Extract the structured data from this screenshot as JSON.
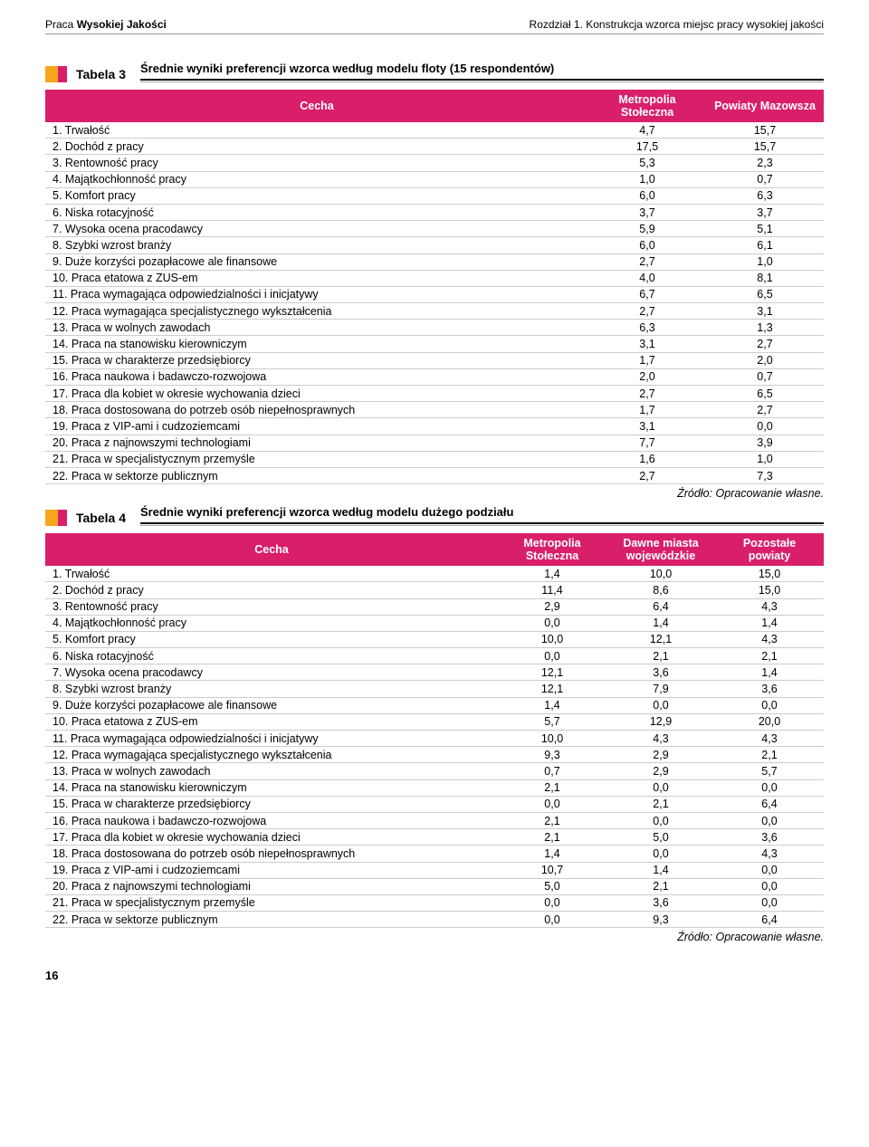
{
  "header": {
    "left_light": "Praca ",
    "left_bold": "Wysokiej Jakości",
    "right": "Rozdział 1. Konstrukcja wzorca miejsc pracy wysokiej jakości"
  },
  "colors": {
    "accent_pink": "#d91f6a",
    "accent_orange": "#f5a61a"
  },
  "tabela3": {
    "tag": "Tabela 3",
    "title": "Średnie wyniki preferencji wzorca według modelu floty (15 respondentów)",
    "columns": [
      "Cecha",
      "Metropolia Stołeczna",
      "Powiaty Mazowsza"
    ],
    "rows": [
      [
        "1. Trwałość",
        "4,7",
        "15,7"
      ],
      [
        "2. Dochód z pracy",
        "17,5",
        "15,7"
      ],
      [
        "3. Rentowność pracy",
        "5,3",
        "2,3"
      ],
      [
        "4. Majątkochłonność pracy",
        "1,0",
        "0,7"
      ],
      [
        "5. Komfort pracy",
        "6,0",
        "6,3"
      ],
      [
        "6. Niska rotacyjność",
        "3,7",
        "3,7"
      ],
      [
        "7. Wysoka ocena pracodawcy",
        "5,9",
        "5,1"
      ],
      [
        "8. Szybki wzrost branży",
        "6,0",
        "6,1"
      ],
      [
        "9. Duże korzyści pozapłacowe ale finansowe",
        "2,7",
        "1,0"
      ],
      [
        "10. Praca etatowa z ZUS-em",
        "4,0",
        "8,1"
      ],
      [
        "11. Praca wymagająca odpowiedzialności i inicjatywy",
        "6,7",
        "6,5"
      ],
      [
        "12. Praca wymagająca specjalistycznego wykształcenia",
        "2,7",
        "3,1"
      ],
      [
        "13. Praca w wolnych zawodach",
        "6,3",
        "1,3"
      ],
      [
        "14. Praca na stanowisku kierowniczym",
        "3,1",
        "2,7"
      ],
      [
        "15. Praca w charakterze przedsiębiorcy",
        "1,7",
        "2,0"
      ],
      [
        "16. Praca naukowa i badawczo-rozwojowa",
        "2,0",
        "0,7"
      ],
      [
        "17. Praca dla kobiet w okresie wychowania dzieci",
        "2,7",
        "6,5"
      ],
      [
        "18. Praca dostosowana do potrzeb osób niepełnosprawnych",
        "1,7",
        "2,7"
      ],
      [
        "19. Praca z VIP-ami i cudzoziemcami",
        "3,1",
        "0,0"
      ],
      [
        "20. Praca z najnowszymi technologiami",
        "7,7",
        "3,9"
      ],
      [
        "21. Praca w specjalistycznym przemyśle",
        "1,6",
        "1,0"
      ],
      [
        "22. Praca w sektorze publicznym",
        "2,7",
        "7,3"
      ]
    ],
    "source": "Źródło: Opracowanie własne."
  },
  "tabela4": {
    "tag": "Tabela 4",
    "title": "Średnie wyniki preferencji wzorca według modelu dużego podziału",
    "columns": [
      "Cecha",
      "Metropolia Stołeczna",
      "Dawne miasta wojewódzkie",
      "Pozostałe powiaty"
    ],
    "rows": [
      [
        "1. Trwałość",
        "1,4",
        "10,0",
        "15,0"
      ],
      [
        "2. Dochód z pracy",
        "11,4",
        "8,6",
        "15,0"
      ],
      [
        "3. Rentowność pracy",
        "2,9",
        "6,4",
        "4,3"
      ],
      [
        "4. Majątkochłonność pracy",
        "0,0",
        "1,4",
        "1,4"
      ],
      [
        "5. Komfort pracy",
        "10,0",
        "12,1",
        "4,3"
      ],
      [
        "6. Niska rotacyjność",
        "0,0",
        "2,1",
        "2,1"
      ],
      [
        "7. Wysoka ocena pracodawcy",
        "12,1",
        "3,6",
        "1,4"
      ],
      [
        "8. Szybki wzrost branży",
        "12,1",
        "7,9",
        "3,6"
      ],
      [
        "9. Duże korzyści pozapłacowe ale finansowe",
        "1,4",
        "0,0",
        "0,0"
      ],
      [
        "10. Praca etatowa z ZUS-em",
        "5,7",
        "12,9",
        "20,0"
      ],
      [
        "11. Praca wymagająca odpowiedzialności i inicjatywy",
        "10,0",
        "4,3",
        "4,3"
      ],
      [
        "12. Praca wymagająca specjalistycznego wykształcenia",
        "9,3",
        "2,9",
        "2,1"
      ],
      [
        "13. Praca w wolnych zawodach",
        "0,7",
        "2,9",
        "5,7"
      ],
      [
        "14. Praca na stanowisku kierowniczym",
        "2,1",
        "0,0",
        "0,0"
      ],
      [
        "15. Praca w charakterze przedsiębiorcy",
        "0,0",
        "2,1",
        "6,4"
      ],
      [
        "16. Praca naukowa i badawczo-rozwojowa",
        "2,1",
        "0,0",
        "0,0"
      ],
      [
        "17. Praca dla kobiet w okresie wychowania dzieci",
        "2,1",
        "5,0",
        "3,6"
      ],
      [
        "18. Praca dostosowana do potrzeb osób niepełnosprawnych",
        "1,4",
        "0,0",
        "4,3"
      ],
      [
        "19. Praca z VIP-ami i cudzoziemcami",
        "10,7",
        "1,4",
        "0,0"
      ],
      [
        "20. Praca z najnowszymi technologiami",
        "5,0",
        "2,1",
        "0,0"
      ],
      [
        "21. Praca w specjalistycznym przemyśle",
        "0,0",
        "3,6",
        "0,0"
      ],
      [
        "22. Praca w sektorze publicznym",
        "0,0",
        "9,3",
        "6,4"
      ]
    ],
    "source": "Źródło: Opracowanie własne."
  },
  "page_number": "16"
}
